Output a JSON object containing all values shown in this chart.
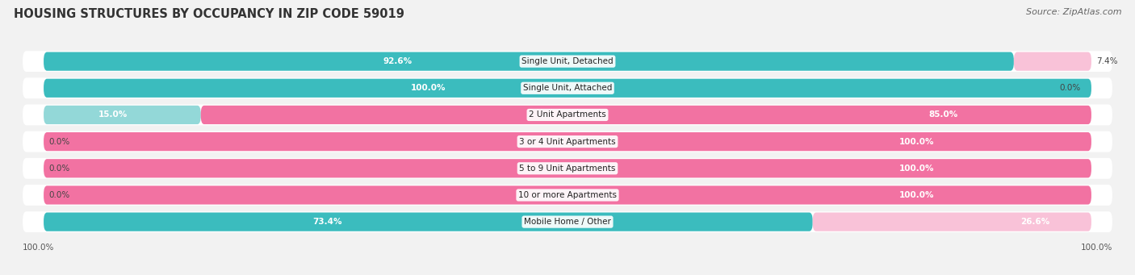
{
  "title": "HOUSING STRUCTURES BY OCCUPANCY IN ZIP CODE 59019",
  "source": "Source: ZipAtlas.com",
  "categories": [
    "Single Unit, Detached",
    "Single Unit, Attached",
    "2 Unit Apartments",
    "3 or 4 Unit Apartments",
    "5 to 9 Unit Apartments",
    "10 or more Apartments",
    "Mobile Home / Other"
  ],
  "owner_pct": [
    92.6,
    100.0,
    15.0,
    0.0,
    0.0,
    0.0,
    73.4
  ],
  "renter_pct": [
    7.4,
    0.0,
    85.0,
    100.0,
    100.0,
    100.0,
    26.6
  ],
  "owner_color": "#3bbcbe",
  "renter_color": "#f272a2",
  "owner_color_light": "#93d8d8",
  "renter_color_light": "#f9c2d8",
  "row_bg": "#e8e8e8",
  "fig_bg": "#f2f2f2",
  "title_fontsize": 10.5,
  "source_fontsize": 8,
  "label_fontsize": 7.5,
  "pct_fontsize": 7.5,
  "legend_fontsize": 8
}
